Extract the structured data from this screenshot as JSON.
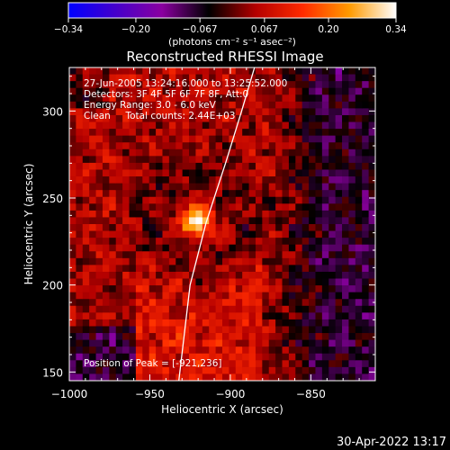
{
  "chart_data": {
    "type": "heatmap",
    "title": "Reconstructed RHESSI Image",
    "xlabel": "Heliocentric X (arcsec)",
    "ylabel": "Heliocentric Y (arcsec)",
    "xlim": [
      -1000,
      -810
    ],
    "ylim": [
      145,
      325
    ],
    "xticks": [
      -1000,
      -950,
      -900,
      -850
    ],
    "xtick_labels": [
      "−1000",
      "−950",
      "−900",
      "−850"
    ],
    "yticks": [
      150,
      200,
      250,
      300
    ],
    "ytick_labels": [
      "150",
      "200",
      "250",
      "300"
    ],
    "colorbar": {
      "min": -0.34,
      "max": 0.34,
      "ticks": [
        -0.34,
        -0.2,
        -0.067,
        0.067,
        0.2,
        0.34
      ],
      "tick_labels": [
        "−0.34",
        "−0.20",
        "−0.067",
        "0.067",
        "0.20",
        "0.34"
      ],
      "unit_label": "(photons cm⁻² s⁻¹ asec⁻²)",
      "colors": [
        "#0000ff",
        "#4400cc",
        "#8a00a0",
        "#000000",
        "#b40000",
        "#ff2a00",
        "#ff9a00",
        "#ffffff"
      ]
    },
    "annotations": [
      "27-Jun-2005 13:24:16.000 to 13:25:52.000",
      "Detectors: 3F 4F 5F 6F 7F 8F, Att:0",
      "Energy Range: 3.0 - 6.0 keV",
      "Clean     Total counts: 2.44E+03"
    ],
    "peak_label": "Position of Peak = [-921,236]",
    "peak": {
      "x": -921,
      "y": 236,
      "value": 0.34
    },
    "limb": [
      [
        -932,
        145
      ],
      [
        -925,
        200
      ],
      [
        -915,
        236
      ],
      [
        -903,
        270
      ],
      [
        -893,
        300
      ],
      [
        -885,
        325
      ]
    ],
    "grid": false
  },
  "footer": {
    "timestamp": "30-Apr-2022 13:17"
  }
}
